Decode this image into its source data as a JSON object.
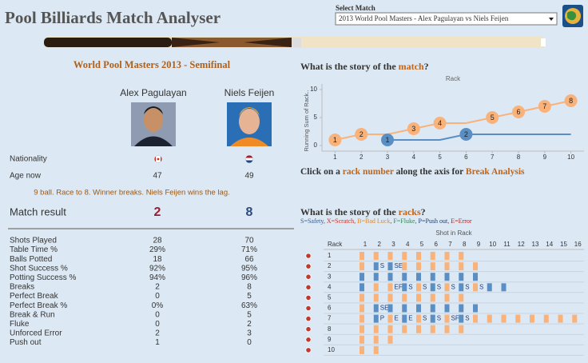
{
  "header": {
    "title": "Pool Billiards Match Analyser",
    "select_label": "Select Match",
    "select_value": "2013 World Pool Masters - Alex Pagulayan vs Niels Feijen"
  },
  "match": {
    "event": "World Pool Masters 2013 - Semifinal",
    "players": [
      "Alex Pagulayan",
      "Niels Feijen"
    ],
    "nationality_label": "Nationality",
    "age_label": "Age now",
    "ages": [
      47,
      49
    ],
    "note": "9 ball. Race to 8. Winner breaks. Niels Feijen wins the lag.",
    "result_label": "Match result",
    "result": [
      2,
      8
    ],
    "result_colors": [
      "#9b1b30",
      "#2c4a7c"
    ]
  },
  "stats": [
    {
      "label": "Shots Played",
      "values": [
        28,
        70
      ]
    },
    {
      "label": "Table Time %",
      "values": [
        "29%",
        "71%"
      ]
    },
    {
      "label": "Balls Potted",
      "values": [
        18,
        66
      ]
    },
    {
      "label": "Shot Success %",
      "values": [
        "92%",
        "95%"
      ]
    },
    {
      "label": "Potting Success %",
      "values": [
        "94%",
        "96%"
      ]
    },
    {
      "label": "Breaks",
      "values": [
        2,
        8
      ]
    },
    {
      "label": "Perfect Break",
      "values": [
        0,
        5
      ]
    },
    {
      "label": "Perfect Break %",
      "values": [
        "0%",
        "63%"
      ]
    },
    {
      "label": "Break & Run",
      "values": [
        0,
        5
      ]
    },
    {
      "label": "Fluke",
      "values": [
        0,
        2
      ]
    },
    {
      "label": "Unforced Error",
      "values": [
        2,
        3
      ]
    },
    {
      "label": "Push out",
      "values": [
        1,
        0
      ]
    }
  ],
  "match_story": {
    "heading": [
      "What is the story of the ",
      "match",
      "?"
    ],
    "hint": [
      "Click on a ",
      "rack number",
      " along the axis for ",
      "Break Analysis"
    ]
  },
  "chart_data": {
    "type": "line",
    "title": "Rack",
    "y_label": "Running Sum of Rack..",
    "x": [
      1,
      2,
      3,
      4,
      5,
      6,
      7,
      8,
      9,
      10
    ],
    "xlim": [
      0.5,
      10.5
    ],
    "xticks": [
      1,
      2,
      3,
      4,
      5,
      6,
      7,
      8,
      9,
      10
    ],
    "ylim": [
      -1,
      11
    ],
    "yticks": [
      0,
      5,
      10
    ],
    "series": [
      {
        "color": "#f9b27a",
        "values": [
          1,
          2,
          2,
          3,
          4,
          4,
          5,
          6,
          7,
          8
        ]
      },
      {
        "color": "#5b8fc4",
        "values": [
          null,
          null,
          1,
          1,
          1,
          2,
          2,
          2,
          2,
          2
        ]
      }
    ]
  },
  "racks": {
    "heading": [
      "What is the story of the ",
      "racks",
      "?"
    ],
    "legend": [
      {
        "text": "S=Safety",
        "color": "#3a5f8f"
      },
      {
        "text": "X=Scratch",
        "color": "#c0392b"
      },
      {
        "text": "B=Bad Luck",
        "color": "#e08a2e"
      },
      {
        "text": "F=Fluke",
        "color": "#2e8b57"
      },
      {
        "text": "P=Push out",
        "color": "#1f3f7a"
      },
      {
        "text": "E=Error",
        "color": "#b22222"
      }
    ],
    "axis_title": "Shot in Rack",
    "rack_label": "Rack",
    "shots": [
      1,
      2,
      3,
      4,
      5,
      6,
      7,
      8,
      9,
      10,
      11,
      12,
      13,
      14,
      15,
      16
    ],
    "player_colors": [
      "#f9b27a",
      "#5b8fc4"
    ],
    "rows": [
      {
        "rack": 1,
        "player": [
          0,
          0,
          0,
          0,
          0,
          0,
          0,
          0
        ],
        "labels": [
          null,
          null,
          null,
          null,
          null,
          null,
          null,
          null
        ]
      },
      {
        "rack": 2,
        "player": [
          0,
          1,
          1,
          0,
          0,
          0,
          0,
          0,
          0
        ],
        "labels": [
          null,
          "S",
          "SE",
          null,
          null,
          null,
          null,
          null,
          null
        ]
      },
      {
        "rack": 3,
        "player": [
          1,
          1,
          1,
          1,
          1,
          1,
          1,
          1,
          1
        ],
        "labels": [
          null,
          null,
          null,
          null,
          null,
          null,
          null,
          null,
          null
        ]
      },
      {
        "rack": 4,
        "player": [
          1,
          0,
          0,
          1,
          0,
          1,
          0,
          1,
          0,
          1,
          1
        ],
        "labels": [
          null,
          null,
          "EF",
          "S",
          "S",
          "S",
          "S",
          "S",
          "S",
          null,
          null
        ]
      },
      {
        "rack": 5,
        "player": [
          0,
          0,
          0,
          0,
          0,
          0,
          0,
          0
        ],
        "labels": [
          null,
          null,
          null,
          null,
          null,
          null,
          null,
          null
        ]
      },
      {
        "rack": 6,
        "player": [
          0,
          1,
          1,
          1,
          1,
          1,
          1,
          1,
          1
        ],
        "labels": [
          null,
          "SE",
          null,
          null,
          null,
          null,
          null,
          null,
          null
        ]
      },
      {
        "rack": 7,
        "player": [
          0,
          1,
          0,
          1,
          0,
          1,
          0,
          1,
          0,
          0,
          0,
          0,
          0,
          0,
          0,
          0
        ],
        "labels": [
          null,
          "P",
          "E",
          "E",
          "S",
          "S",
          "SF",
          "S",
          null,
          null,
          null,
          null,
          null,
          null,
          null,
          null
        ]
      },
      {
        "rack": 8,
        "player": [
          0,
          0,
          0,
          0,
          0,
          0,
          0,
          0
        ],
        "labels": [
          null,
          null,
          null,
          null,
          null,
          null,
          null,
          null
        ]
      },
      {
        "rack": 9,
        "player": [
          0,
          0,
          0
        ],
        "labels": [
          null,
          null,
          null
        ]
      },
      {
        "rack": 10,
        "player": [
          0,
          0
        ],
        "labels": [
          null,
          null
        ]
      }
    ]
  }
}
